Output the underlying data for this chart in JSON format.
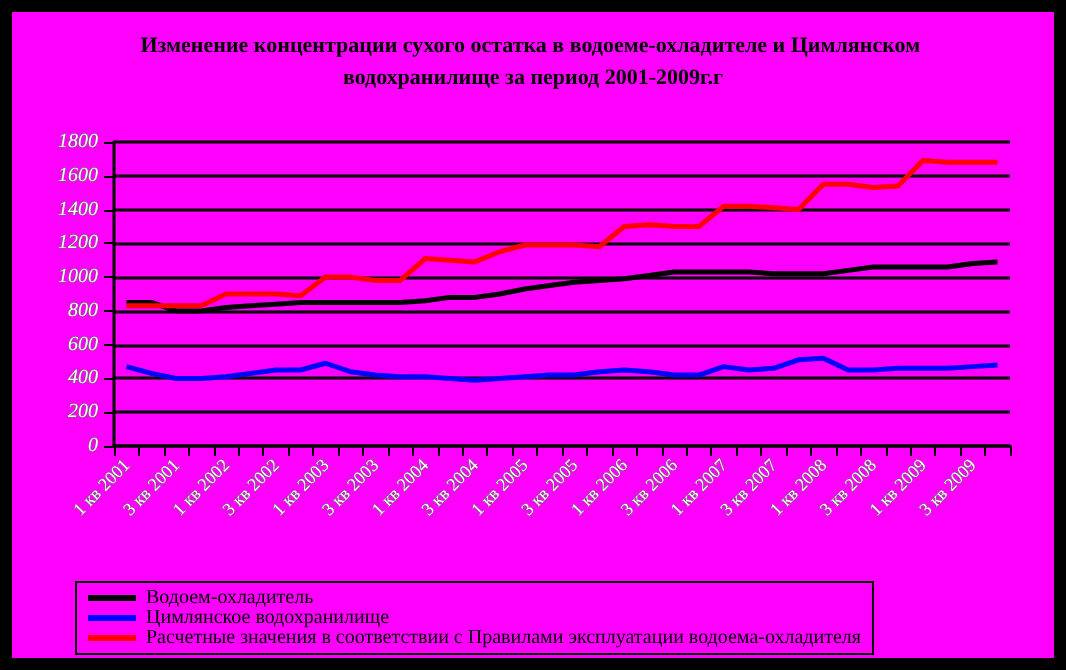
{
  "chart_data": {
    "type": "line",
    "title": "Изменение концентрации сухого остатка в водоеме-охладителе и Цимлянском водохранилище за период 2001-2009г.г",
    "categories": [
      "1 кв 2001",
      null,
      "3 кв 2001",
      null,
      "1 кв 2002",
      null,
      "3 кв 2002",
      null,
      "1 кв 2003",
      null,
      "3 кв 2003",
      null,
      "1 кв 2004",
      null,
      "3 кв 2004",
      null,
      "1 кв 2005",
      null,
      "3 кв 2005",
      null,
      "1 кв 2006",
      null,
      "3 кв 2006",
      null,
      "1 кв 2007",
      null,
      "3 кв 2007",
      null,
      "1 кв 2008",
      null,
      "3 кв 2008",
      null,
      "1 кв 2009",
      null,
      "3 кв 2009",
      null
    ],
    "series": [
      {
        "name": "Водоем-охладитель",
        "color": "#000000",
        "values": [
          850,
          850,
          800,
          800,
          820,
          830,
          840,
          850,
          850,
          850,
          850,
          850,
          860,
          880,
          880,
          900,
          930,
          950,
          970,
          980,
          990,
          1010,
          1030,
          1030,
          1030,
          1030,
          1020,
          1020,
          1020,
          1040,
          1060,
          1060,
          1060,
          1060,
          1080,
          1090
        ]
      },
      {
        "name": "Цимлянское водохранилище",
        "color": "#0000ff",
        "values": [
          470,
          430,
          400,
          400,
          410,
          430,
          450,
          450,
          490,
          440,
          420,
          410,
          410,
          400,
          390,
          400,
          410,
          420,
          420,
          440,
          450,
          440,
          420,
          420,
          470,
          450,
          460,
          510,
          520,
          450,
          450,
          460,
          460,
          460,
          470,
          480
        ]
      },
      {
        "name": "Расчетные значения в соответствии с Правилами эксплуатации водоема-охладителя",
        "color": "#ff0000",
        "values": [
          830,
          830,
          830,
          830,
          900,
          900,
          900,
          890,
          1000,
          1000,
          980,
          980,
          1110,
          1100,
          1090,
          1150,
          1190,
          1190,
          1190,
          1180,
          1300,
          1310,
          1300,
          1300,
          1420,
          1420,
          1410,
          1400,
          1550,
          1550,
          1530,
          1540,
          1690,
          1680,
          1680,
          1680
        ]
      }
    ],
    "ylim": [
      0,
      1800
    ],
    "yticks": [
      0,
      200,
      400,
      600,
      800,
      1000,
      1200,
      1400,
      1600,
      1800
    ],
    "grid": "y",
    "legend": "bottom",
    "marker": "none"
  }
}
